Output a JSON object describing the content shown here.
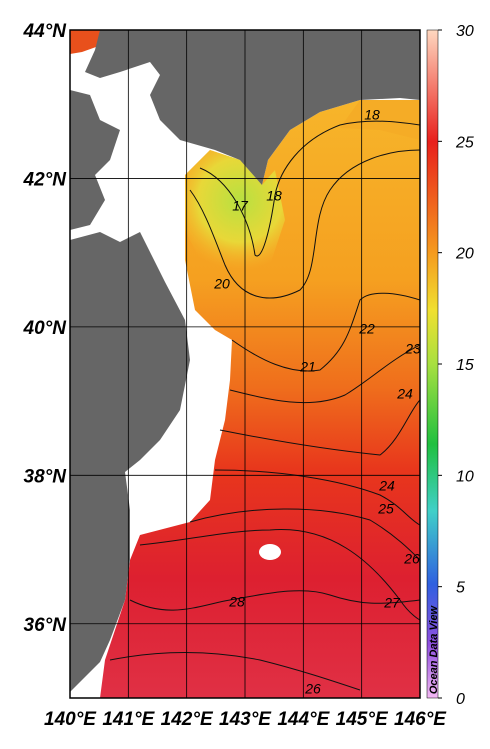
{
  "map": {
    "xlim": [
      140,
      146
    ],
    "ylim": [
      35,
      44
    ],
    "xticks": [
      {
        "value": 140,
        "label": "140°E"
      },
      {
        "value": 141,
        "label": "141°E"
      },
      {
        "value": 142,
        "label": "142°E"
      },
      {
        "value": 143,
        "label": "143°E"
      },
      {
        "value": 144,
        "label": "144°E"
      },
      {
        "value": 145,
        "label": "145°E"
      },
      {
        "value": 146,
        "label": "146°E"
      }
    ],
    "yticks": [
      {
        "value": 36,
        "label": "36°N"
      },
      {
        "value": 38,
        "label": "38°N"
      },
      {
        "value": 40,
        "label": "40°N"
      },
      {
        "value": 42,
        "label": "42°N"
      },
      {
        "value": 44,
        "label": "44°N"
      }
    ],
    "grid": true,
    "contour_labels": [
      18,
      17,
      18,
      20,
      22,
      23,
      21,
      24,
      24,
      25,
      26,
      27,
      28,
      26
    ],
    "credit": "Ocean Data View"
  },
  "colorbar": {
    "lim": [
      0,
      30
    ],
    "ticks": [
      0,
      5,
      10,
      15,
      20,
      25,
      30
    ]
  }
}
